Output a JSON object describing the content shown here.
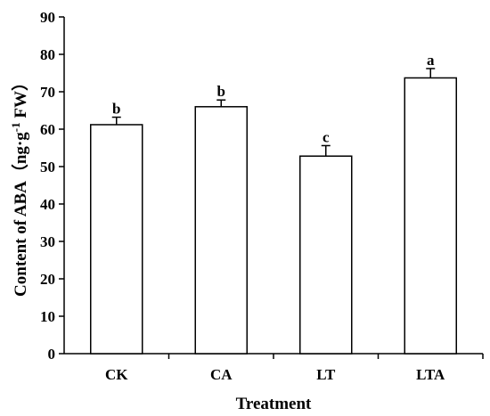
{
  "chart_data": {
    "type": "bar",
    "categories": [
      "CK",
      "CA",
      "LT",
      "LTA"
    ],
    "values": [
      61.2,
      66.0,
      52.8,
      73.7
    ],
    "errors": [
      2.0,
      1.8,
      2.8,
      2.5
    ],
    "significance": [
      "b",
      "b",
      "c",
      "a"
    ],
    "xlabel": "Treatment",
    "ylabel": {
      "main": "Content of ABA（ng·g",
      "superscript": "-1",
      "tail": " FW）"
    },
    "ylim": [
      0,
      90
    ],
    "yticks": [
      0,
      10,
      20,
      30,
      40,
      50,
      60,
      70,
      80,
      90
    ],
    "grid": false,
    "bar_fill": "#ffffff",
    "bar_stroke": "#000000"
  }
}
